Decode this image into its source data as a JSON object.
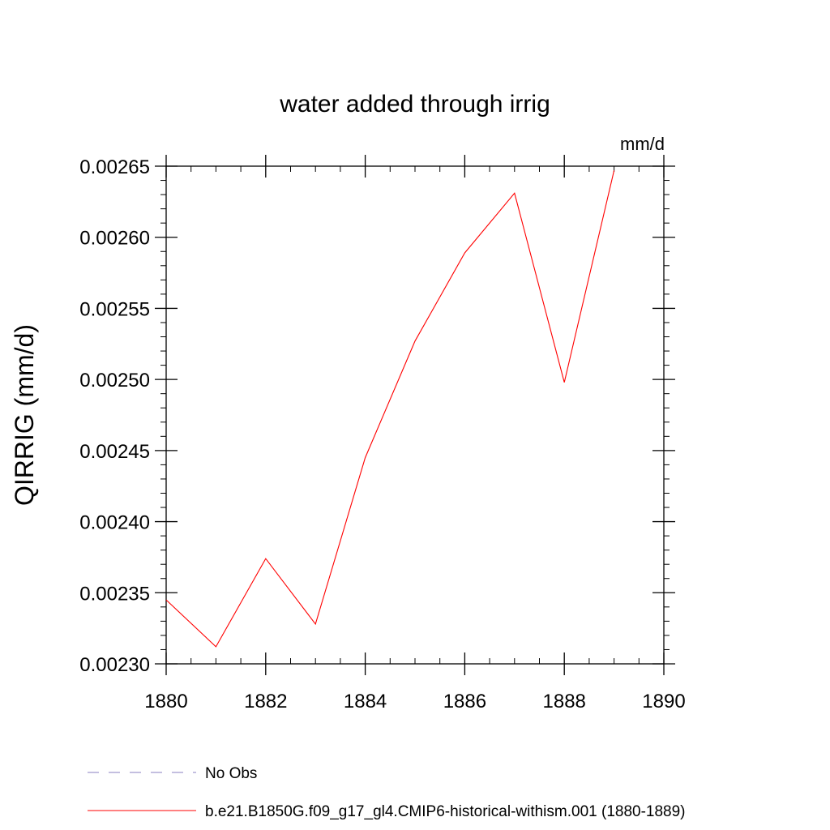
{
  "chart_data": {
    "type": "line",
    "title": "water added through irrig",
    "units": "mm/d",
    "xlabel": "",
    "ylabel": "QIRRIG  (mm/d)",
    "xlim": [
      1880,
      1890
    ],
    "ylim": [
      0.0023,
      0.00265
    ],
    "x_ticks": [
      1880,
      1882,
      1884,
      1886,
      1888,
      1890
    ],
    "x_tick_labels": [
      "1880",
      "1882",
      "1884",
      "1886",
      "1888",
      "1890"
    ],
    "y_ticks": [
      0.0023,
      0.00235,
      0.0024,
      0.00245,
      0.0025,
      0.00255,
      0.0026,
      0.00265
    ],
    "y_tick_labels": [
      "0.00230",
      "0.00235",
      "0.00240",
      "0.00245",
      "0.00250",
      "0.00255",
      "0.00260",
      "0.00265"
    ],
    "grid": false,
    "legend_position": "bottom",
    "series": [
      {
        "name": "b.e21.B1850G.f09_g17_gl4.CMIP6-historical-withism.001 (1880-1889)",
        "color": "#ff0000",
        "style": "solid",
        "x": [
          1880,
          1881,
          1882,
          1883,
          1884,
          1885,
          1886,
          1887,
          1888,
          1889
        ],
        "y": [
          0.002345,
          0.002312,
          0.002374,
          0.002328,
          0.002445,
          0.002527,
          0.002589,
          0.002631,
          0.002498,
          0.002647
        ]
      }
    ],
    "legend": [
      {
        "label": "No Obs",
        "color": "#8a7fc0",
        "style": "dashed"
      },
      {
        "label": "b.e21.B1850G.f09_g17_gl4.CMIP6-historical-withism.001 (1880-1889)",
        "color": "#ff0000",
        "style": "solid"
      }
    ]
  }
}
